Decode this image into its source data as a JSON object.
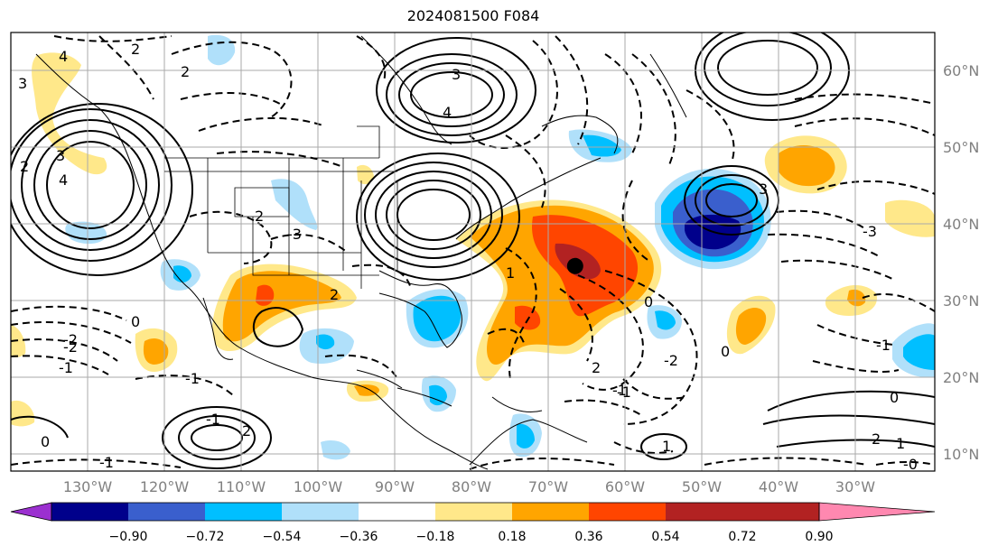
{
  "title": "2024081500 F084",
  "lon_labels": [
    "130°W",
    "120°W",
    "110°W",
    "100°W",
    "90°W",
    "80°W",
    "70°W",
    "60°W",
    "50°W",
    "40°W",
    "30°W"
  ],
  "lat_labels": [
    "60°N",
    "50°N",
    "40°N",
    "30°N",
    "20°N",
    "10°N"
  ],
  "colorbar": {
    "colors": [
      "#9b30d0",
      "#00008b",
      "#3a5fcd",
      "#00bfff",
      "#b0e0fa",
      "#ffffff",
      "#ffe88a",
      "#ffa500",
      "#ff4500",
      "#b22222",
      "#ff88b0"
    ],
    "ticks": [
      "−0.90",
      "−0.72",
      "−0.54",
      "−0.36",
      "−0.18",
      "0.18",
      "0.36",
      "0.54",
      "0.72",
      "0.90"
    ]
  },
  "contour_labels": [
    {
      "t": "4"
    },
    {
      "t": "2"
    },
    {
      "t": "2"
    },
    {
      "t": "3"
    },
    {
      "t": "2"
    },
    {
      "t": "-3"
    },
    {
      "t": "3"
    },
    {
      "t": "4"
    },
    {
      "t": "4"
    },
    {
      "t": "3"
    },
    {
      "t": "2"
    },
    {
      "t": "2"
    },
    {
      "t": "1"
    },
    {
      "t": "-1"
    },
    {
      "t": "-2"
    },
    {
      "t": "-1"
    },
    {
      "t": "0"
    },
    {
      "t": "-1"
    },
    {
      "t": "0"
    },
    {
      "t": "2"
    },
    {
      "t": "1"
    },
    {
      "t": "2"
    },
    {
      "t": "-1"
    },
    {
      "t": "0"
    },
    {
      "t": "-2"
    },
    {
      "t": "-3"
    },
    {
      "t": "3"
    },
    {
      "t": "2"
    },
    {
      "t": "1"
    },
    {
      "t": "-0"
    },
    {
      "t": "0"
    },
    {
      "t": "-1"
    },
    {
      "t": "0"
    },
    {
      "t": "-1"
    },
    {
      "t": "-2"
    },
    {
      "t": "-1"
    }
  ],
  "marker": {
    "lon": -66.5,
    "lat": 34.5
  }
}
